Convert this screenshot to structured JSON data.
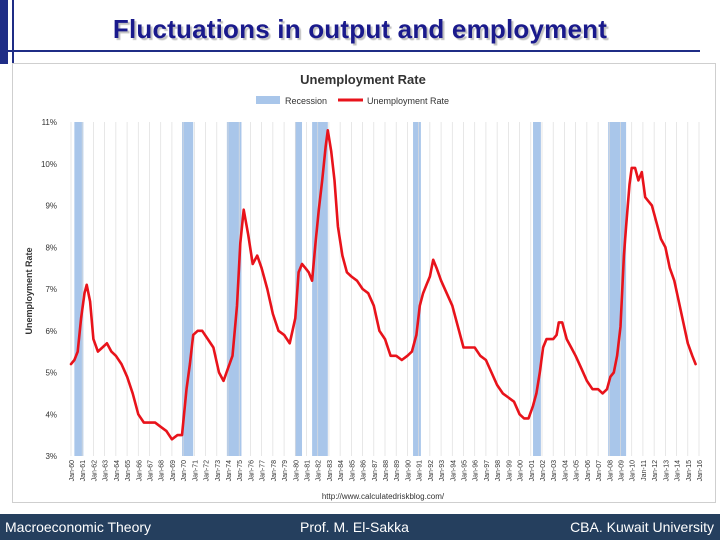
{
  "slide": {
    "title": "Fluctuations in output and employment",
    "footer_left": "Macroeconomic Theory",
    "footer_center": "Prof. M. El-Sakka",
    "footer_right": "CBA. Kuwait University"
  },
  "chart_data": {
    "type": "line",
    "title": "Unemployment Rate",
    "ylabel": "Unemployment Rate",
    "xlabel": "",
    "ylim": [
      3,
      11
    ],
    "xlim": [
      1960.0,
      2016.0
    ],
    "y_ticks": [
      "11%",
      "10%",
      "9%",
      "8%",
      "7%",
      "6%",
      "5%",
      "4%",
      "3%"
    ],
    "x_ticks": [
      "Jan-60",
      "Jan-61",
      "Jan-62",
      "Jan-63",
      "Jan-64",
      "Jan-65",
      "Jan-66",
      "Jan-67",
      "Jan-68",
      "Jan-69",
      "Jan-70",
      "Jan-71",
      "Jan-72",
      "Jan-73",
      "Jan-74",
      "Jan-75",
      "Jan-76",
      "Jan-77",
      "Jan-78",
      "Jan-79",
      "Jan-80",
      "Jan-81",
      "Jan-82",
      "Jan-83",
      "Jan-84",
      "Jan-85",
      "Jan-86",
      "Jan-87",
      "Jan-88",
      "Jan-89",
      "Jan-90",
      "Jan-91",
      "Jan-92",
      "Jan-93",
      "Jan-94",
      "Jan-95",
      "Jan-96",
      "Jan-97",
      "Jan-98",
      "Jan-99",
      "Jan-00",
      "Jan-01",
      "Jan-02",
      "Jan-03",
      "Jan-04",
      "Jan-05",
      "Jan-06",
      "Jan-07",
      "Jan-08",
      "Jan-09",
      "Jan-10",
      "Jan-11",
      "Jan-12",
      "Jan-13",
      "Jan-14",
      "Jan-15",
      "Jan-16"
    ],
    "grid": "vertical",
    "legend": {
      "placement": "top-center",
      "recession_label": "Recession",
      "rate_label": "Unemployment Rate"
    },
    "source": "http://www.calculatedriskblog.com/",
    "colors": {
      "line": "#e8131b",
      "recession": "#a9c6ea"
    },
    "recessions": [
      [
        1960.3,
        1961.1
      ],
      [
        1969.9,
        1970.9
      ],
      [
        1973.9,
        1975.2
      ],
      [
        1980.0,
        1980.6
      ],
      [
        1981.5,
        1982.9
      ],
      [
        1990.5,
        1991.2
      ],
      [
        2001.2,
        2001.9
      ],
      [
        2007.9,
        2009.5
      ]
    ],
    "series": [
      {
        "name": "Unemployment Rate",
        "x": [
          1960.0,
          1960.3,
          1960.6,
          1960.9,
          1961.2,
          1961.4,
          1961.7,
          1962.0,
          1962.4,
          1962.8,
          1963.2,
          1963.6,
          1964.0,
          1964.5,
          1965.0,
          1965.5,
          1966.0,
          1966.5,
          1967.0,
          1967.5,
          1968.0,
          1968.5,
          1969.0,
          1969.5,
          1969.9,
          1970.3,
          1970.6,
          1970.9,
          1971.3,
          1971.7,
          1972.2,
          1972.7,
          1973.2,
          1973.6,
          1974.0,
          1974.4,
          1974.8,
          1975.1,
          1975.4,
          1975.8,
          1976.2,
          1976.6,
          1977.0,
          1977.5,
          1978.0,
          1978.5,
          1979.0,
          1979.5,
          1980.0,
          1980.3,
          1980.6,
          1980.9,
          1981.2,
          1981.5,
          1981.8,
          1982.1,
          1982.4,
          1982.7,
          1982.9,
          1983.2,
          1983.5,
          1983.8,
          1984.2,
          1984.6,
          1985.0,
          1985.5,
          1986.0,
          1986.5,
          1987.0,
          1987.5,
          1988.0,
          1988.5,
          1989.0,
          1989.5,
          1990.0,
          1990.4,
          1990.8,
          1991.1,
          1991.4,
          1991.7,
          1992.0,
          1992.3,
          1992.6,
          1993.0,
          1993.5,
          1994.0,
          1994.5,
          1995.0,
          1995.5,
          1996.0,
          1996.5,
          1997.0,
          1997.5,
          1998.0,
          1998.5,
          1999.0,
          1999.5,
          2000.0,
          2000.4,
          2000.8,
          2001.2,
          2001.5,
          2001.8,
          2002.1,
          2002.4,
          2002.7,
          2003.0,
          2003.3,
          2003.5,
          2003.8,
          2004.2,
          2004.6,
          2005.0,
          2005.5,
          2006.0,
          2006.5,
          2007.0,
          2007.4,
          2007.8,
          2008.1,
          2008.4,
          2008.7,
          2009.0,
          2009.3,
          2009.5,
          2009.8,
          2010.0,
          2010.3,
          2010.6,
          2010.9,
          2011.2,
          2011.5,
          2011.8,
          2012.2,
          2012.6,
          2013.0,
          2013.4,
          2013.8,
          2014.2,
          2014.6,
          2015.0,
          2015.4,
          2015.7
        ],
        "values": [
          5.2,
          5.3,
          5.5,
          6.3,
          6.9,
          7.1,
          6.7,
          5.8,
          5.5,
          5.6,
          5.7,
          5.5,
          5.4,
          5.2,
          4.9,
          4.5,
          4.0,
          3.8,
          3.8,
          3.8,
          3.7,
          3.6,
          3.4,
          3.5,
          3.5,
          4.6,
          5.2,
          5.9,
          6.0,
          6.0,
          5.8,
          5.6,
          5.0,
          4.8,
          5.1,
          5.4,
          6.6,
          8.1,
          8.9,
          8.3,
          7.6,
          7.8,
          7.5,
          7.0,
          6.4,
          6.0,
          5.9,
          5.7,
          6.3,
          7.4,
          7.6,
          7.5,
          7.4,
          7.2,
          8.1,
          8.9,
          9.6,
          10.4,
          10.8,
          10.3,
          9.6,
          8.5,
          7.8,
          7.4,
          7.3,
          7.2,
          7.0,
          6.9,
          6.6,
          6.0,
          5.8,
          5.4,
          5.4,
          5.3,
          5.4,
          5.5,
          5.9,
          6.6,
          6.9,
          7.1,
          7.3,
          7.7,
          7.5,
          7.2,
          6.9,
          6.6,
          6.1,
          5.6,
          5.6,
          5.6,
          5.4,
          5.3,
          5.0,
          4.7,
          4.5,
          4.4,
          4.3,
          4.0,
          3.9,
          3.9,
          4.2,
          4.5,
          5.0,
          5.6,
          5.8,
          5.8,
          5.8,
          5.9,
          6.2,
          6.2,
          5.8,
          5.6,
          5.4,
          5.1,
          4.8,
          4.6,
          4.6,
          4.5,
          4.6,
          4.9,
          5.0,
          5.4,
          6.1,
          7.8,
          8.5,
          9.5,
          9.9,
          9.9,
          9.6,
          9.8,
          9.2,
          9.1,
          9.0,
          8.6,
          8.2,
          8.0,
          7.5,
          7.2,
          6.7,
          6.2,
          5.7,
          5.4,
          5.2
        ]
      }
    ]
  }
}
